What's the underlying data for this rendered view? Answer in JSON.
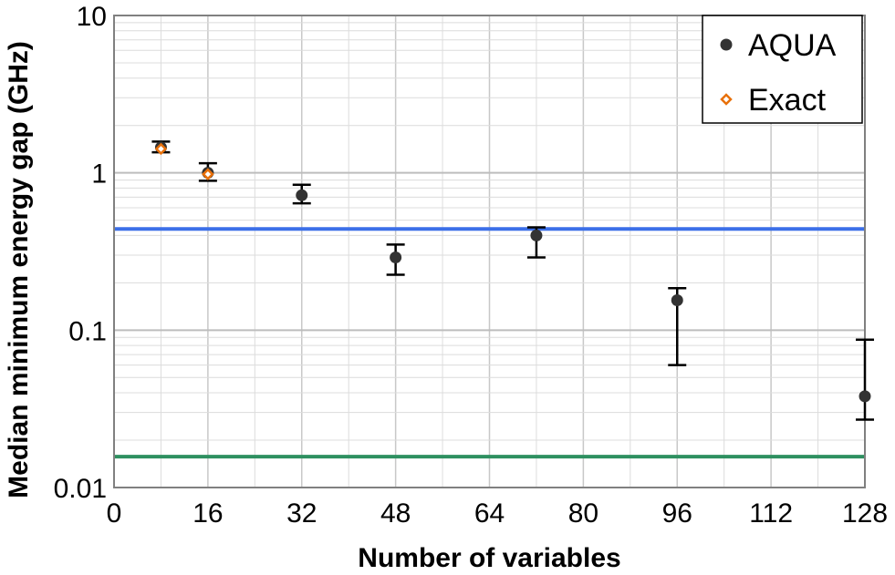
{
  "chart_data": {
    "type": "scatter",
    "title": "",
    "xlabel": "Number of variables",
    "ylabel": "Median minimum energy gap (GHz)",
    "xlim": [
      0,
      128
    ],
    "ylim": [
      0.01,
      10
    ],
    "yscale": "log",
    "grid": true,
    "legend_position": "top-right",
    "x_ticks": [
      0,
      16,
      32,
      48,
      64,
      80,
      96,
      112,
      128
    ],
    "x_tick_labels": [
      "0",
      "16",
      "32",
      "48",
      "64",
      "80",
      "96",
      "112",
      "128"
    ],
    "y_ticks": [
      0.01,
      0.1,
      1,
      10
    ],
    "y_tick_labels": [
      "0.01",
      "0.1",
      "1",
      "10"
    ],
    "series": [
      {
        "name": "AQUA",
        "marker": "filled-circle",
        "color": "#333333",
        "points": [
          {
            "x": 8,
            "y": 1.45,
            "err_low": 1.35,
            "err_high": 1.58
          },
          {
            "x": 16,
            "y": 1.0,
            "err_low": 0.89,
            "err_high": 1.15
          },
          {
            "x": 32,
            "y": 0.72,
            "err_low": 0.64,
            "err_high": 0.84
          },
          {
            "x": 48,
            "y": 0.29,
            "err_low": 0.225,
            "err_high": 0.35
          },
          {
            "x": 72,
            "y": 0.4,
            "err_low": 0.29,
            "err_high": 0.45
          },
          {
            "x": 96,
            "y": 0.155,
            "err_low": 0.06,
            "err_high": 0.185
          },
          {
            "x": 128,
            "y": 0.038,
            "err_low": 0.027,
            "err_high": 0.087
          }
        ]
      },
      {
        "name": "Exact",
        "marker": "open-diamond",
        "color": "#e8700a",
        "points": [
          {
            "x": 8,
            "y": 1.42
          },
          {
            "x": 16,
            "y": 0.98
          }
        ]
      }
    ],
    "reference_lines": [
      {
        "y": 0.44,
        "color": "#3b6fe8"
      },
      {
        "y": 0.0157,
        "color": "#2e9060"
      }
    ]
  }
}
